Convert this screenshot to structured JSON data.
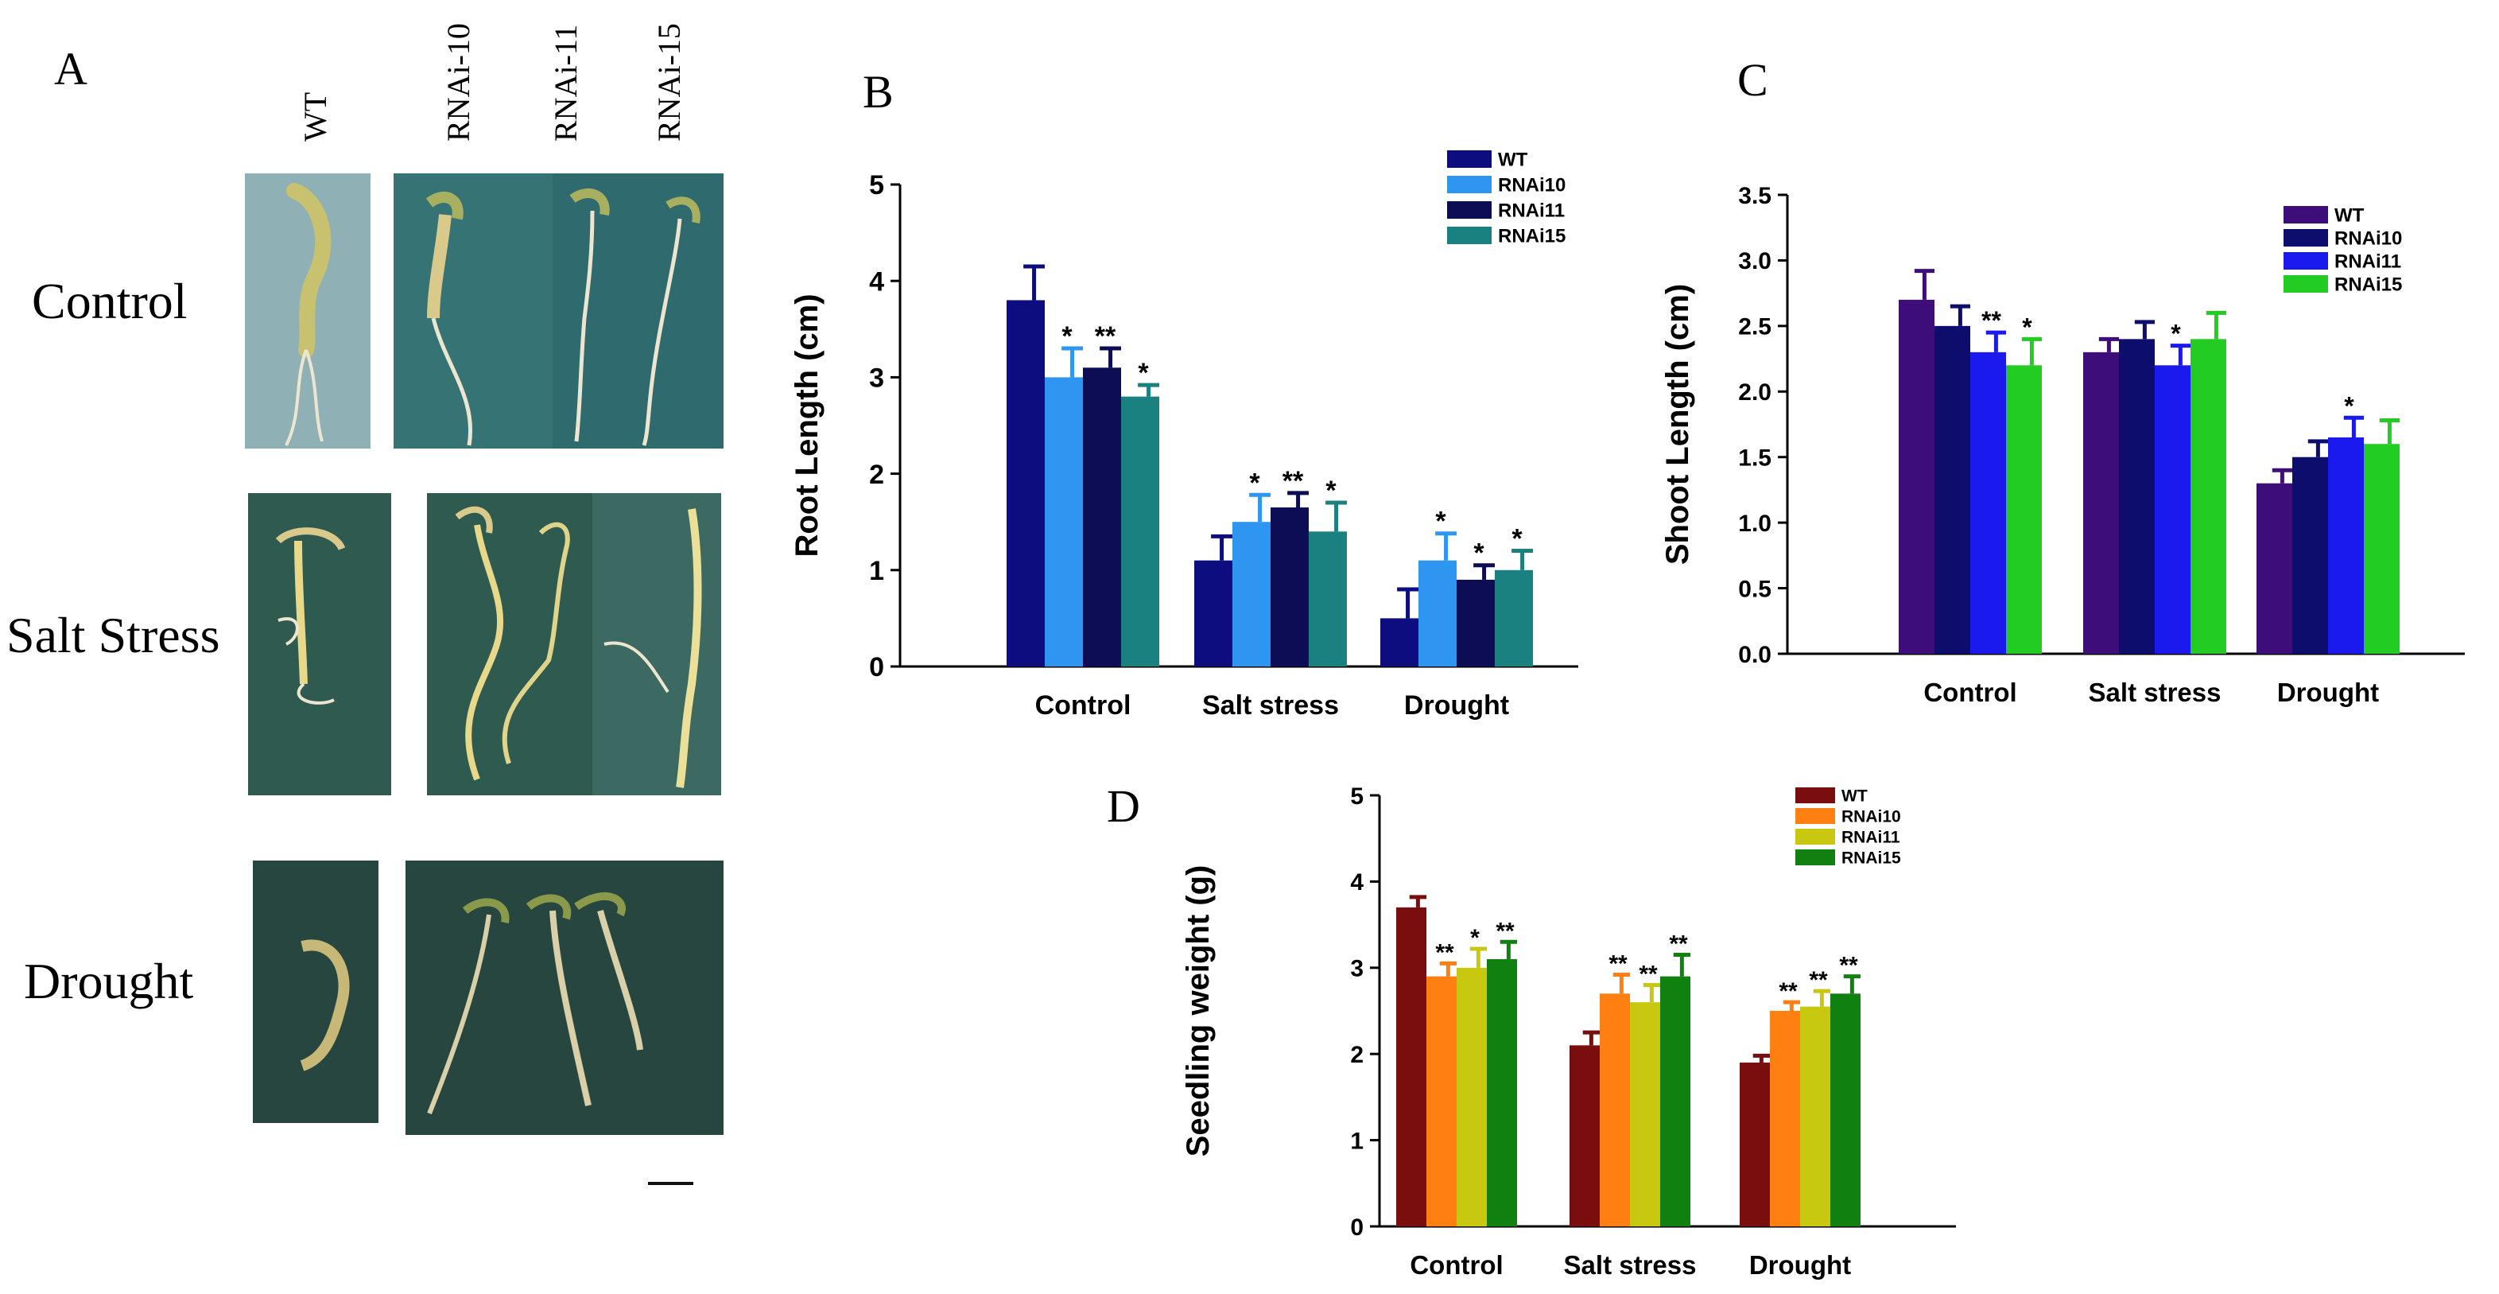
{
  "figure": {
    "colors": {
      "plant_stem": "#d9c98a",
      "plant_leaf": "#8a9a4a",
      "root": "#ece6d0",
      "bg_light": "#7ea3a8",
      "bg_teal": "#2f6a6e",
      "bg_green": "#2f5a50",
      "bg_dark": "#27463f"
    }
  },
  "panel_a": {
    "letter": "A",
    "column_labels": [
      "WT",
      "RNAi-10",
      "RNAi-11",
      "RNAi-15"
    ],
    "row_labels": [
      "Control",
      "Salt Stress",
      "Drought"
    ],
    "scale_bar": true
  },
  "chart_data": [
    {
      "panel": "B",
      "type": "bar",
      "title": "",
      "xlabel": "",
      "ylabel": "Root Length (cm)",
      "ylim": [
        0,
        5
      ],
      "yticks": [
        "0",
        "1",
        "2",
        "3",
        "4",
        "5"
      ],
      "categories": [
        "Control",
        "Salt stress",
        "Drought"
      ],
      "legend": "top-right",
      "series": [
        {
          "name": "WT",
          "color": "#0d0d80",
          "values": [
            3.8,
            1.1,
            0.5
          ],
          "errors": [
            0.35,
            0.25,
            0.3
          ],
          "sig": [
            "",
            "",
            ""
          ]
        },
        {
          "name": "RNAi10",
          "color": "#2e96f0",
          "values": [
            3.0,
            1.5,
            1.1
          ],
          "errors": [
            0.3,
            0.28,
            0.28
          ],
          "sig": [
            "*",
            "*",
            "*"
          ]
        },
        {
          "name": "RNAi11",
          "color": "#0d0d55",
          "values": [
            3.1,
            1.65,
            0.9
          ],
          "errors": [
            0.2,
            0.15,
            0.15
          ],
          "sig": [
            "**",
            "**",
            "*"
          ]
        },
        {
          "name": "RNAi15",
          "color": "#1a8080",
          "values": [
            2.8,
            1.4,
            1.0
          ],
          "errors": [
            0.12,
            0.3,
            0.2
          ],
          "sig": [
            "*",
            "*",
            "*"
          ]
        }
      ]
    },
    {
      "panel": "C",
      "type": "bar",
      "title": "",
      "xlabel": "",
      "ylabel": "Shoot Length (cm)",
      "ylim": [
        0,
        3.5
      ],
      "yticks": [
        "0.0",
        "0.5",
        "1.0",
        "1.5",
        "2.0",
        "2.5",
        "3.0",
        "3.5"
      ],
      "categories": [
        "Control",
        "Salt stress",
        "Drought"
      ],
      "legend": "top-right",
      "series": [
        {
          "name": "WT",
          "color": "#3d0d7a",
          "values": [
            2.7,
            2.3,
            1.3
          ],
          "errors": [
            0.22,
            0.1,
            0.1
          ],
          "sig": [
            "",
            "",
            ""
          ]
        },
        {
          "name": "RNAi10",
          "color": "#0d0d6e",
          "values": [
            2.5,
            2.4,
            1.5
          ],
          "errors": [
            0.15,
            0.13,
            0.12
          ],
          "sig": [
            "",
            "",
            ""
          ]
        },
        {
          "name": "RNAi11",
          "color": "#1a1aee",
          "values": [
            2.3,
            2.2,
            1.65
          ],
          "errors": [
            0.15,
            0.15,
            0.15
          ],
          "sig": [
            "**",
            "*",
            "*"
          ]
        },
        {
          "name": "RNAi15",
          "color": "#22cc22",
          "values": [
            2.2,
            2.4,
            1.6
          ],
          "errors": [
            0.2,
            0.2,
            0.18
          ],
          "sig": [
            "*",
            "",
            ""
          ]
        }
      ]
    },
    {
      "panel": "D",
      "type": "bar",
      "title": "",
      "xlabel": "",
      "ylabel": "Seedling weight (g)",
      "ylim": [
        0,
        5
      ],
      "yticks": [
        "0",
        "1",
        "2",
        "3",
        "4",
        "5"
      ],
      "categories": [
        "Control",
        "Salt stress",
        "Drought"
      ],
      "legend": "top-right",
      "series": [
        {
          "name": "WT",
          "color": "#7a0d0d",
          "values": [
            3.7,
            2.1,
            1.9
          ],
          "errors": [
            0.12,
            0.15,
            0.08
          ],
          "sig": [
            "",
            "",
            ""
          ]
        },
        {
          "name": "RNAi10",
          "color": "#ff8010",
          "values": [
            2.9,
            2.7,
            2.5
          ],
          "errors": [
            0.15,
            0.22,
            0.1
          ],
          "sig": [
            "**",
            "**",
            "**"
          ]
        },
        {
          "name": "RNAi11",
          "color": "#c8c810",
          "values": [
            3.0,
            2.6,
            2.55
          ],
          "errors": [
            0.22,
            0.2,
            0.18
          ],
          "sig": [
            "*",
            "**",
            "**"
          ]
        },
        {
          "name": "RNAi15",
          "color": "#108010",
          "values": [
            3.1,
            2.9,
            2.7
          ],
          "errors": [
            0.2,
            0.25,
            0.2
          ],
          "sig": [
            "**",
            "**",
            "**"
          ]
        }
      ]
    }
  ]
}
